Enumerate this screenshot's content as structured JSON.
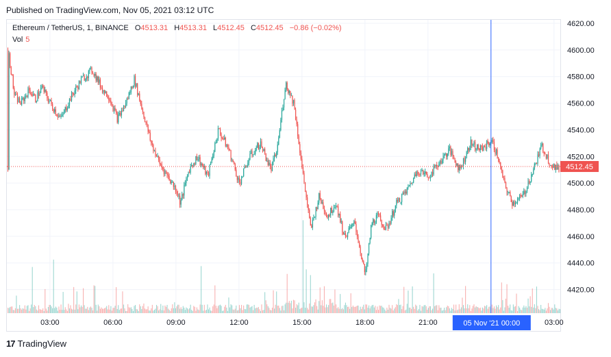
{
  "header": {
    "published": "Published on TradingView.com, Nov 05, 2021 03:12 UTC"
  },
  "legend": {
    "symbol": "Ethereum / TetherUS, 1, BINANCE",
    "open_label": "O",
    "open": "4513.31",
    "high_label": "H",
    "high": "4513.31",
    "low_label": "L",
    "low": "4512.45",
    "close_label": "C",
    "close": "4512.45",
    "change": "−0.86 (−0.02%)",
    "vol_label": "Vol",
    "vol": "5"
  },
  "footer": {
    "brand": "TradingView",
    "logo": "17"
  },
  "colors": {
    "up": "#26a69a",
    "down": "#ef5350",
    "crosshair": "#2962ff",
    "price_line": "#ef5350"
  },
  "chart_data": {
    "type": "line",
    "title": "Ethereum / TetherUS, 1, BINANCE",
    "ylim": [
      4410,
      4625
    ],
    "y_ticks": [
      "4620.00",
      "4600.00",
      "4580.00",
      "4560.00",
      "4540.00",
      "4520.00",
      "4500.00",
      "4480.00",
      "4460.00",
      "4440.00",
      "4420.00"
    ],
    "x_ticks": [
      "03:00",
      "06:00",
      "09:00",
      "12:00",
      "15:00",
      "18:00",
      "21:00",
      "03:00"
    ],
    "x_range_hours": [
      1,
      27.3
    ],
    "x_tick_hours": [
      3,
      6,
      9,
      12,
      15,
      18,
      21,
      27
    ],
    "crosshair": {
      "x_hours": 24.0,
      "label": "05 Nov '21   00:00"
    },
    "last_price": {
      "value": 4512.45,
      "label": "4512.45"
    },
    "series": [
      {
        "name": "ETHUSDT",
        "x_hours": [
          1.0,
          1.3,
          1.6,
          2.0,
          2.3,
          2.6,
          3.0,
          3.5,
          4.0,
          4.5,
          5.0,
          5.5,
          5.8,
          6.2,
          6.6,
          7.0,
          7.5,
          7.8,
          8.2,
          8.6,
          9.0,
          9.2,
          9.6,
          10.0,
          10.5,
          11.0,
          11.5,
          12.0,
          12.5,
          13.0,
          13.5,
          13.8,
          14.2,
          14.6,
          15.0,
          15.4,
          15.8,
          16.2,
          16.6,
          17.0,
          17.5,
          18.0,
          18.3,
          18.6,
          19.0,
          19.5,
          20.0,
          20.5,
          21.0,
          21.5,
          22.0,
          22.5,
          23.0,
          23.5,
          24.0,
          24.3,
          24.6,
          25.0,
          25.5,
          26.0,
          26.4,
          26.8,
          27.2
        ],
        "values": [
          4600,
          4565,
          4560,
          4570,
          4563,
          4572,
          4560,
          4548,
          4565,
          4578,
          4585,
          4570,
          4565,
          4548,
          4560,
          4578,
          4548,
          4530,
          4515,
          4505,
          4495,
          4485,
          4510,
          4520,
          4505,
          4540,
          4525,
          4500,
          4520,
          4530,
          4510,
          4525,
          4575,
          4560,
          4510,
          4465,
          4490,
          4475,
          4485,
          4460,
          4470,
          4430,
          4470,
          4475,
          4465,
          4485,
          4495,
          4510,
          4505,
          4515,
          4525,
          4510,
          4530,
          4525,
          4532,
          4520,
          4500,
          4485,
          4490,
          4510,
          4528,
          4515,
          4510
        ]
      }
    ],
    "volume": {
      "name": "Vol"
    }
  }
}
